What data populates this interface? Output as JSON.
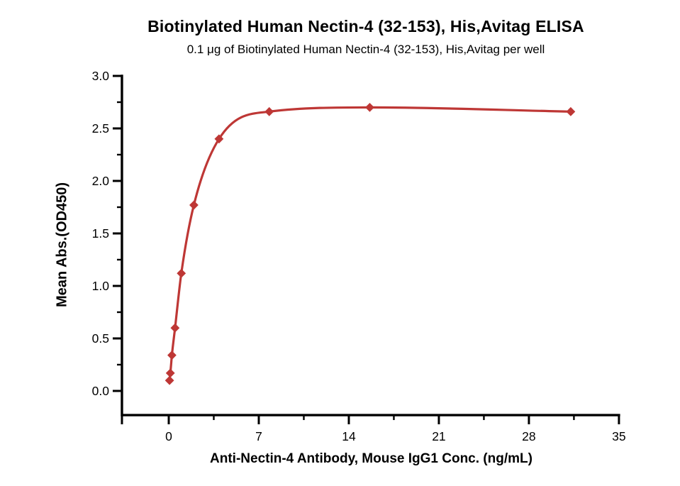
{
  "chart_data": {
    "type": "scatter",
    "title": "Biotinylated Human Nectin-4 (32-153), His,Avitag ELISA",
    "subtitle": "0.1 μg of Biotinylated Human Nectin-4 (32-153), His,Avitag per well",
    "xlabel": "Anti-Nectin-4 Antibody, Mouse IgG1 Conc. (ng/mL)",
    "ylabel": "Mean Abs.(OD450)",
    "x": [
      0.061,
      0.122,
      0.244,
      0.488,
      0.977,
      1.953,
      3.906,
      7.813,
      15.625,
      31.25
    ],
    "y": [
      0.1,
      0.17,
      0.34,
      0.6,
      1.12,
      1.77,
      2.4,
      2.66,
      2.7,
      2.66
    ],
    "x_ticks": [
      0,
      7,
      14,
      21,
      28,
      35
    ],
    "x_minor_ticks": [
      3.5,
      10.5,
      17.5,
      24.5,
      31.5
    ],
    "y_ticks": [
      "0.0",
      "0.5",
      "1.0",
      "1.5",
      "2.0",
      "2.5",
      "3.0"
    ],
    "y_minor_ticks": [
      0.25,
      0.75,
      1.25,
      1.75,
      2.25,
      2.75
    ],
    "xlim": [
      -3.64,
      35
    ],
    "ylim": [
      -0.23,
      3.0
    ],
    "grid": false,
    "legend": "none",
    "marker": "diamond",
    "series_color": "#BE3735",
    "axis_color": "#000000",
    "text_color": "#000000",
    "background_color": "#ffffff"
  }
}
